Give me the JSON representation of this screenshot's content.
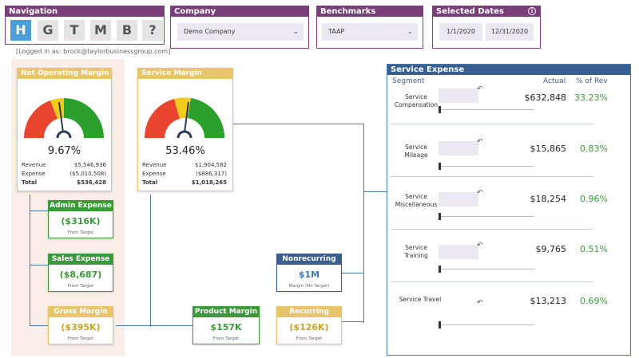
{
  "navigation": {
    "title": "Navigation",
    "buttons": [
      "H",
      "G",
      "T",
      "M",
      "B",
      "?"
    ]
  },
  "company": {
    "title": "Company",
    "selected": "Demo Company"
  },
  "benchmarks": {
    "title": "Benchmarks",
    "selected": "TAAP"
  },
  "dates": {
    "title": "Selected Dates",
    "start": "1/1/2020",
    "end": "12/31/2020"
  },
  "logged_in": "[Logged in as: brock@taylorbusinessgroup.com]",
  "net_operating_margin": {
    "title": "Net Operating Margin",
    "value": "9.67%",
    "revenue_label": "Revenue",
    "revenue": "$5,546,936",
    "expense_label": "Expense",
    "expense": "($5,010,508)",
    "total_label": "Total",
    "total": "$536,428"
  },
  "service_margin": {
    "title": "Service Margin",
    "value": "53.46%",
    "revenue_label": "Revenue",
    "revenue": "$1,904,582",
    "expense_label": "Expense",
    "expense": "($886,317)",
    "total_label": "Total",
    "total": "$1,018,265"
  },
  "admin_expense": {
    "title": "Admin Expense",
    "value": "($316K)",
    "sub": "From Target"
  },
  "sales_expense": {
    "title": "Sales Expense",
    "value": "($8,687)",
    "sub": "From Target"
  },
  "gross_margin": {
    "title": "Gross Margin",
    "value": "($395K)",
    "sub": "From Target"
  },
  "product_margin": {
    "title": "Product Margin",
    "value": "$157K",
    "sub": "From Target"
  },
  "nonrecurring": {
    "title": "Nonrecurring",
    "value": "$1M",
    "sub": "Margin (No Target)"
  },
  "recurring": {
    "title": "Recurring",
    "value": "($126K)",
    "sub": "From Target"
  },
  "service_expense": {
    "title": "Service Expense",
    "col_segment": "Segment",
    "col_actual": "Actual",
    "col_pct": "% of Rev",
    "rows": [
      {
        "label1": "Service",
        "label2": "Compensation",
        "actual": "$632,848",
        "pct": "33.23%"
      },
      {
        "label1": "Service",
        "label2": "Mileage",
        "actual": "$15,865",
        "pct": "0.83%"
      },
      {
        "label1": "Service",
        "label2": "Miscellaneous",
        "actual": "$18,254",
        "pct": "0.96%"
      },
      {
        "label1": "Service",
        "label2": "Training",
        "actual": "$9,765",
        "pct": "0.51%"
      },
      {
        "label1": "Service Travel",
        "label2": "",
        "actual": "$13,213",
        "pct": "0.69%"
      }
    ]
  },
  "colors": {
    "accent": "#7a3e7a",
    "gauge_red": "#e8442e",
    "gauge_yellow": "#f2cb1d",
    "gauge_green": "#2ca02c",
    "positive": "#3a9a3a",
    "negative": "#c9a227",
    "blue": "#3a5f8f"
  },
  "icons": {
    "info": "info-icon",
    "chevron": "chevron-down-icon",
    "undo": "undo-icon"
  }
}
